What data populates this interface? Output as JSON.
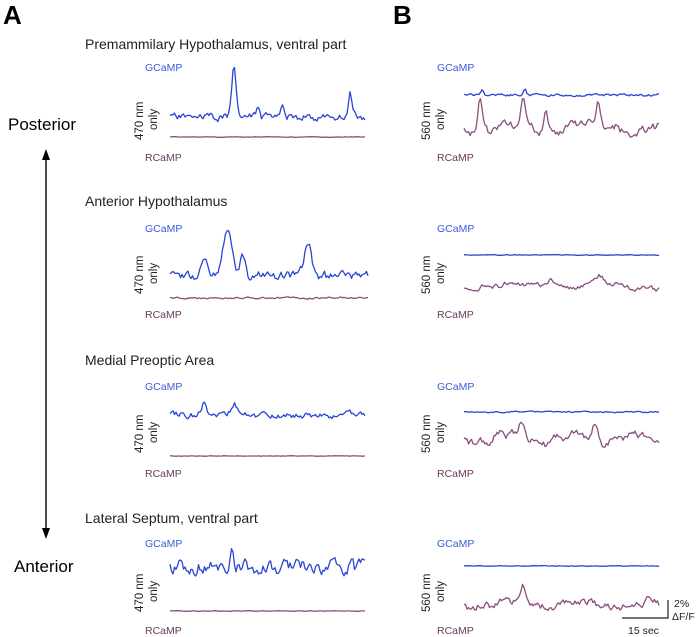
{
  "panels": {
    "a": "A",
    "b": "B"
  },
  "axis": {
    "posterior": "Posterior",
    "anterior": "Anterior"
  },
  "trace_labels": {
    "gcamp": "GCaMP",
    "rcamp": "RCaMP"
  },
  "ylabels": {
    "a": {
      "line1": "470 nm",
      "line2": "only"
    },
    "b": {
      "line1": "560 nm",
      "line2": "only"
    }
  },
  "regions": [
    {
      "title": "Premammilary Hypothalamus, ventral part"
    },
    {
      "title": "Anterior Hypothalamus"
    },
    {
      "title": "Medial Preoptic Area"
    },
    {
      "title": "Lateral Septum, ventral part"
    }
  ],
  "scale_bar": {
    "amplitude": "2%",
    "units": "ΔF/F",
    "time": "15 sec"
  },
  "colors": {
    "gcamp": "#2846d2",
    "rcamp": "#8a4f7d"
  }
}
